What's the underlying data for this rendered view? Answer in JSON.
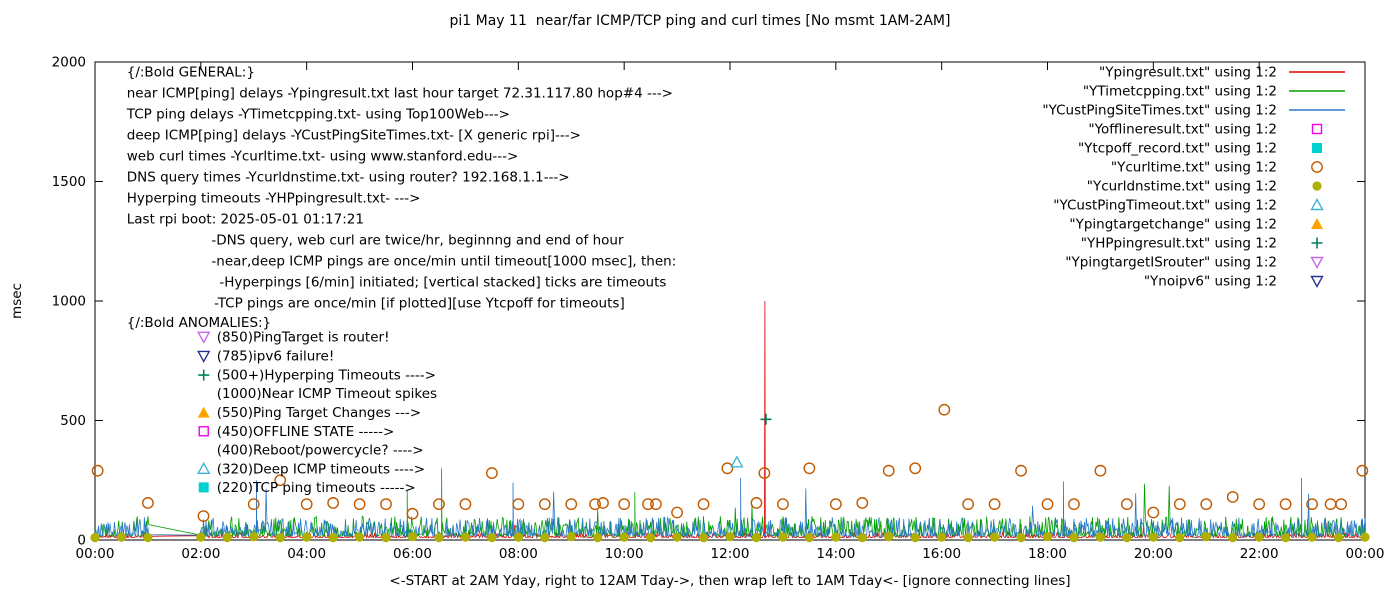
{
  "chart_data": {
    "type": "line",
    "title": "pi1 May 11  near/far ICMP/TCP ping and curl times [No msmt 1AM-2AM]",
    "xlabel": "<-START at 2AM Yday, right to 12AM Tday->, then wrap left to 1AM Tday<- [ignore connecting lines]",
    "ylabel": "msec",
    "x_axis": {
      "range": [
        0,
        24
      ],
      "tick_hours": [
        0,
        2,
        4,
        6,
        8,
        10,
        12,
        14,
        16,
        18,
        20,
        22,
        24
      ],
      "tick_labels": [
        "00:00",
        "02:00",
        "04:00",
        "06:00",
        "08:00",
        "10:00",
        "12:00",
        "14:00",
        "16:00",
        "18:00",
        "20:00",
        "22:00",
        "00:00"
      ]
    },
    "y_axis": {
      "range": [
        0,
        2000
      ],
      "ticks": [
        0,
        500,
        1000,
        1500,
        2000
      ]
    },
    "legend": [
      {
        "label": "\"Ypingresult.txt\" using 1:2",
        "color": "#e00000",
        "sample": "line"
      },
      {
        "label": "\"YTimetcpping.txt\" using 1:2",
        "color": "#00a000",
        "sample": "line"
      },
      {
        "label": "\"YCustPingSiteTimes.txt\" using 1:2",
        "color": "#2878c8",
        "sample": "line"
      },
      {
        "label": "\"Yofflineresult.txt\" using 1:2",
        "color": "#ee00ee",
        "sample": "square-open"
      },
      {
        "label": "\"Ytcpoff_record.txt\" using 1:2",
        "color": "#00d0d0",
        "sample": "square-filled"
      },
      {
        "label": "\"Ycurltime.txt\" using 1:2",
        "color": "#c05a00",
        "sample": "circle-open"
      },
      {
        "label": "\"Ycurldnstime.txt\" using 1:2",
        "color": "#b0b000",
        "sample": "circle-filled"
      },
      {
        "label": "\"YCustPingTimeout.txt\" using 1:2",
        "color": "#40b4d8",
        "sample": "triangle-open"
      },
      {
        "label": "\"Ypingtargetchange\" using 1:2",
        "color": "#ffa500",
        "sample": "triangle-filled"
      },
      {
        "label": "\"YHPpingresult.txt\" using 1:2",
        "color": "#008060",
        "sample": "plus"
      },
      {
        "label": "\"YpingtargetISrouter\" using 1:2",
        "color": "#c868f0",
        "sample": "nabla-open"
      },
      {
        "label": "\"Ynoipv6\" using 1:2",
        "color": "#283593",
        "sample": "nabla-open"
      }
    ],
    "series": [
      {
        "name": "Ypingresult",
        "color": "#e00000",
        "seed": 11,
        "base": 10,
        "exp": 3,
        "amp": 22,
        "spike_p": 0.003,
        "spike_amp": 60,
        "spikes": [
          {
            "x": 12.66,
            "y": 1000
          }
        ]
      },
      {
        "name": "YTimetcpping",
        "color": "#00a000",
        "seed": 22,
        "base": 15,
        "exp": 2.4,
        "amp": 85,
        "spike_p": 0.005,
        "spike_amp": 200,
        "spikes": [
          {
            "x": 5.9,
            "y": 205
          },
          {
            "x": 6.55,
            "y": 300
          },
          {
            "x": 10.2,
            "y": 200
          }
        ]
      },
      {
        "name": "YCustPingSiteTimes",
        "color": "#2878c8",
        "seed": 33,
        "base": 15,
        "exp": 2.4,
        "amp": 80,
        "spike_p": 0.005,
        "spike_amp": 190,
        "spikes": [
          {
            "x": 3.05,
            "y": 250
          },
          {
            "x": 7.9,
            "y": 240
          },
          {
            "x": 12.2,
            "y": 260
          },
          {
            "x": 18.3,
            "y": 245
          },
          {
            "x": 22.8,
            "y": 260
          }
        ]
      }
    ],
    "scatter": [
      {
        "name": "Ycurltime",
        "marker": "circle-open",
        "color": "#c05a00",
        "points": [
          [
            0.05,
            290
          ],
          [
            1.0,
            155
          ],
          [
            2.05,
            100
          ],
          [
            3.0,
            150
          ],
          [
            3.5,
            250
          ],
          [
            4.0,
            150
          ],
          [
            4.5,
            155
          ],
          [
            5.0,
            150
          ],
          [
            5.5,
            150
          ],
          [
            6.0,
            110
          ],
          [
            6.5,
            150
          ],
          [
            7.0,
            150
          ],
          [
            7.5,
            280
          ],
          [
            8.0,
            150
          ],
          [
            8.5,
            150
          ],
          [
            9.0,
            150
          ],
          [
            9.45,
            150
          ],
          [
            9.6,
            155
          ],
          [
            10.0,
            150
          ],
          [
            10.45,
            150
          ],
          [
            10.6,
            150
          ],
          [
            11.0,
            115
          ],
          [
            11.5,
            150
          ],
          [
            11.95,
            300
          ],
          [
            12.5,
            155
          ],
          [
            12.65,
            280
          ],
          [
            13.0,
            150
          ],
          [
            13.5,
            300
          ],
          [
            14.0,
            150
          ],
          [
            14.5,
            155
          ],
          [
            15.0,
            290
          ],
          [
            15.5,
            300
          ],
          [
            16.05,
            545
          ],
          [
            16.5,
            150
          ],
          [
            17.0,
            150
          ],
          [
            17.5,
            290
          ],
          [
            18.0,
            150
          ],
          [
            18.5,
            150
          ],
          [
            19.0,
            290
          ],
          [
            19.5,
            150
          ],
          [
            20.0,
            115
          ],
          [
            20.5,
            150
          ],
          [
            21.0,
            150
          ],
          [
            21.5,
            180
          ],
          [
            22.0,
            150
          ],
          [
            22.5,
            150
          ],
          [
            23.0,
            150
          ],
          [
            23.35,
            150
          ],
          [
            23.55,
            150
          ],
          [
            23.95,
            290
          ]
        ]
      },
      {
        "name": "Ycurldnstime",
        "marker": "circle-filled",
        "color": "#b0b000",
        "points": [
          [
            0,
            10
          ],
          [
            0.5,
            12
          ],
          [
            1,
            10
          ],
          [
            2,
            12
          ],
          [
            2.5,
            10
          ],
          [
            3,
            14
          ],
          [
            3.5,
            10
          ],
          [
            4,
            12
          ],
          [
            4.5,
            10
          ],
          [
            5,
            12
          ],
          [
            5.5,
            10
          ],
          [
            6,
            14
          ],
          [
            6.5,
            10
          ],
          [
            7,
            12
          ],
          [
            7.5,
            10
          ],
          [
            8,
            12
          ],
          [
            8.5,
            10
          ],
          [
            9,
            14
          ],
          [
            9.5,
            10
          ],
          [
            10,
            12
          ],
          [
            10.5,
            10
          ],
          [
            11,
            12
          ],
          [
            11.5,
            10
          ],
          [
            12,
            14
          ],
          [
            12.5,
            10
          ],
          [
            13,
            12
          ],
          [
            13.5,
            10
          ],
          [
            14,
            12
          ],
          [
            14.5,
            10
          ],
          [
            15,
            14
          ],
          [
            15.5,
            10
          ],
          [
            16,
            12
          ],
          [
            16.5,
            10
          ],
          [
            17,
            12
          ],
          [
            17.5,
            10
          ],
          [
            18,
            14
          ],
          [
            18.5,
            10
          ],
          [
            19,
            12
          ],
          [
            19.5,
            10
          ],
          [
            20,
            12
          ],
          [
            20.5,
            10
          ],
          [
            21,
            14
          ],
          [
            21.5,
            10
          ],
          [
            22,
            12
          ],
          [
            22.5,
            10
          ],
          [
            23,
            12
          ],
          [
            23.5,
            10
          ],
          [
            24,
            12
          ]
        ]
      },
      {
        "name": "YCustPingTimeout",
        "marker": "triangle-open",
        "color": "#40b4d8",
        "points": [
          [
            12.13,
            325
          ]
        ]
      },
      {
        "name": "YHPpingresult",
        "marker": "plus",
        "color": "#008060",
        "points": [
          [
            12.68,
            505
          ]
        ]
      }
    ],
    "annotations": [
      {
        "text": "{/:Bold GENERAL:}",
        "x": 0.6,
        "y": 1958
      },
      {
        "text": "near ICMP[ping] delays -Ypingresult.txt last hour target 72.31.117.80 hop#4 --->",
        "x": 0.6,
        "y": 1870
      },
      {
        "text": "TCP ping delays -YTimetcpping.txt- using Top100Web--->",
        "x": 0.6,
        "y": 1783
      },
      {
        "text": "deep ICMP[ping] delays -YCustPingSiteTimes.txt- [X generic rpi]--->",
        "x": 0.6,
        "y": 1695
      },
      {
        "text": "web curl times -Ycurltime.txt- using www.stanford.edu--->",
        "x": 0.6,
        "y": 1607
      },
      {
        "text": "DNS query times -Ycurldnstime.txt- using router? 192.168.1.1--->",
        "x": 0.6,
        "y": 1519
      },
      {
        "text": "Hyperping timeouts -YHPpingresult.txt- --->",
        "x": 0.6,
        "y": 1431
      },
      {
        "text": "Last rpi boot: 2025-05-01 01:17:21",
        "x": 0.6,
        "y": 1343
      },
      {
        "text": "-DNS query, web curl are twice/hr, beginnng and end of hour",
        "x": 2.2,
        "y": 1255
      },
      {
        "text": "-near,deep ICMP pings are once/min until timeout[1000 msec], then:",
        "x": 2.2,
        "y": 1167
      },
      {
        "text": "-Hyperpings [6/min] initiated; [vertical stacked] ticks are timeouts",
        "x": 2.35,
        "y": 1079
      },
      {
        "text": "-TCP pings are once/min [if plotted][use Ytcpoff for timeouts]",
        "x": 2.25,
        "y": 992
      },
      {
        "text": "{/:Bold ANOMALIES:}",
        "x": 0.6,
        "y": 910
      },
      {
        "text": "(850)PingTarget is router!",
        "x": 2.3,
        "y": 850,
        "marker": "nabla-open",
        "mcolor": "#c868f0"
      },
      {
        "text": "(785)ipv6 failure!",
        "x": 2.3,
        "y": 770,
        "marker": "nabla-open",
        "mcolor": "#283593"
      },
      {
        "text": "(500+)Hyperping Timeouts ---->",
        "x": 2.3,
        "y": 690,
        "marker": "plus",
        "mcolor": "#008060"
      },
      {
        "text": "(1000)Near ICMP Timeout spikes",
        "x": 2.3,
        "y": 612
      },
      {
        "text": "(550)Ping Target Changes --->",
        "x": 2.3,
        "y": 533,
        "marker": "triangle-filled",
        "mcolor": "#ffa500"
      },
      {
        "text": "(450)OFFLINE STATE ----->",
        "x": 2.3,
        "y": 455,
        "marker": "square-open",
        "mcolor": "#ee00ee"
      },
      {
        "text": "(400)Reboot/powercycle? ---->",
        "x": 2.3,
        "y": 377
      },
      {
        "text": "(320)Deep ICMP timeouts ---->",
        "x": 2.3,
        "y": 298,
        "marker": "triangle-open",
        "mcolor": "#40b4d8"
      },
      {
        "text": "(220)TCP ping timeouts ----->",
        "x": 2.3,
        "y": 220,
        "marker": "square-filled",
        "mcolor": "#00d0d0"
      }
    ]
  }
}
